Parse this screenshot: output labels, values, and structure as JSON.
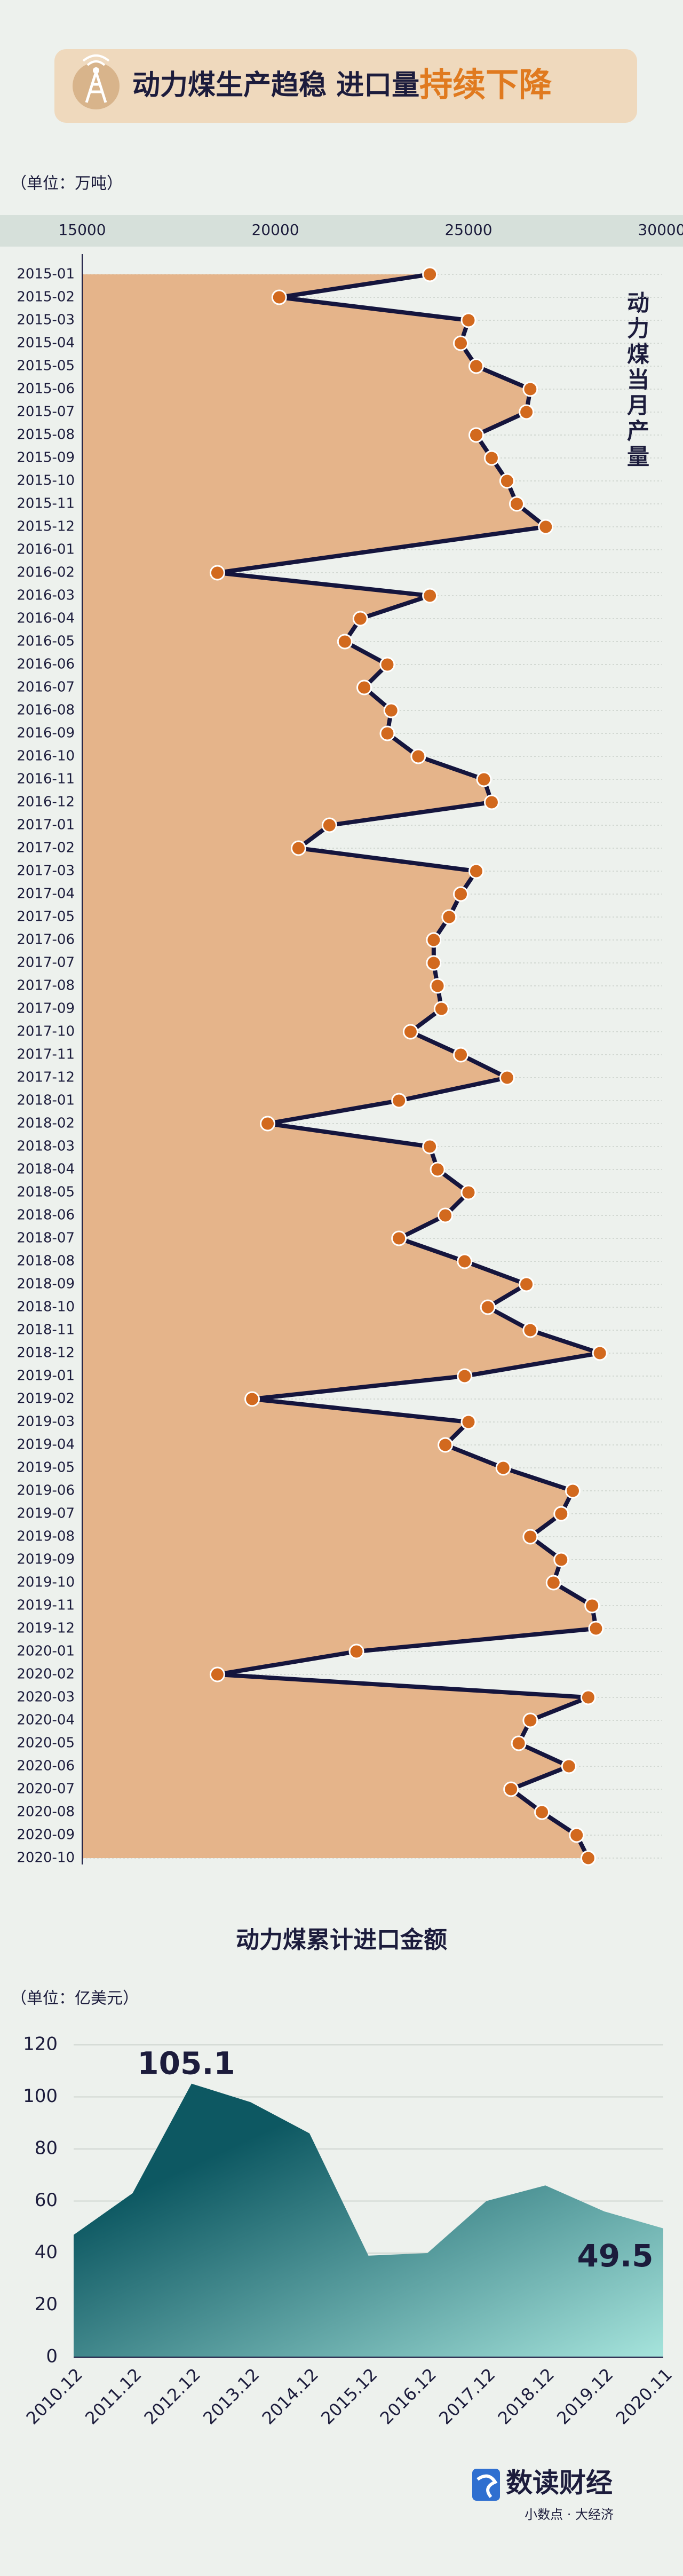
{
  "header": {
    "title": "动力煤生产趋稳 进口量",
    "highlight": "持续下降"
  },
  "chart_data": [
    {
      "type": "line",
      "orientation": "horizontal",
      "title": "动力煤当月产量",
      "unit": "（单位：万吨）",
      "categories": [
        "2015-01",
        "2015-02",
        "2015-03",
        "2015-04",
        "2015-05",
        "2015-06",
        "2015-07",
        "2015-08",
        "2015-09",
        "2015-10",
        "2015-11",
        "2015-12",
        "2016-01",
        "2016-02",
        "2016-03",
        "2016-04",
        "2016-05",
        "2016-06",
        "2016-07",
        "2016-08",
        "2016-09",
        "2016-10",
        "2016-11",
        "2016-12",
        "2017-01",
        "2017-02",
        "2017-03",
        "2017-04",
        "2017-05",
        "2017-06",
        "2017-07",
        "2017-08",
        "2017-09",
        "2017-10",
        "2017-11",
        "2017-12",
        "2018-01",
        "2018-02",
        "2018-03",
        "2018-04",
        "2018-05",
        "2018-06",
        "2018-07",
        "2018-08",
        "2018-09",
        "2018-10",
        "2018-11",
        "2018-12",
        "2019-01",
        "2019-02",
        "2019-03",
        "2019-04",
        "2019-05",
        "2019-06",
        "2019-07",
        "2019-08",
        "2019-09",
        "2019-10",
        "2019-11",
        "2019-12",
        "2020-01",
        "2020-02",
        "2020-03",
        "2020-04",
        "2020-05",
        "2020-06",
        "2020-07",
        "2020-08",
        "2020-09",
        "2020-10"
      ],
      "values": [
        24000,
        20100,
        25000,
        24800,
        25200,
        26600,
        26500,
        25200,
        25600,
        26000,
        26250,
        27000,
        null,
        18500,
        24000,
        22200,
        21800,
        22900,
        22300,
        23000,
        22900,
        23700,
        25400,
        25600,
        21400,
        20600,
        25200,
        24800,
        24500,
        24100,
        24100,
        24200,
        24300,
        23500,
        24800,
        26000,
        23200,
        19800,
        24000,
        24200,
        25000,
        24400,
        23200,
        24900,
        26500,
        25500,
        26600,
        28400,
        24900,
        19400,
        25000,
        24400,
        25900,
        27700,
        27400,
        26600,
        27400,
        27200,
        28200,
        28300,
        22100,
        18500,
        28100,
        26600,
        26300,
        27600,
        26100,
        26900,
        27800,
        28100
      ],
      "color": "#15153d",
      "marker_color": "#d2691e",
      "fill_color": "#e5b48a",
      "connect_nulls": true,
      "xlim": [
        15000,
        30000
      ],
      "xticks": [
        15000,
        20000,
        25000,
        30000
      ],
      "grid": true
    },
    {
      "type": "area",
      "title": "动力煤累计进口金额",
      "unit": "（单位：亿美元）",
      "categories": [
        "2010.12",
        "2011.12",
        "2012.12",
        "2013.12",
        "2014.12",
        "2015.12",
        "2016.12",
        "2017.12",
        "2018.12",
        "2019.12",
        "2020.11"
      ],
      "values": [
        47,
        63,
        105.1,
        98,
        86,
        39,
        40,
        60,
        66,
        56,
        49.5
      ],
      "labeled_indices": [
        2,
        10
      ],
      "color": [
        "#0d5862",
        "#a6e4dc"
      ],
      "ylim": [
        0,
        120
      ],
      "yticks": [
        0,
        20,
        40,
        60,
        80,
        100,
        120
      ],
      "grid": true
    }
  ],
  "footer": {
    "brand": "数读财经",
    "slogan": "小数点 · 大经济"
  }
}
